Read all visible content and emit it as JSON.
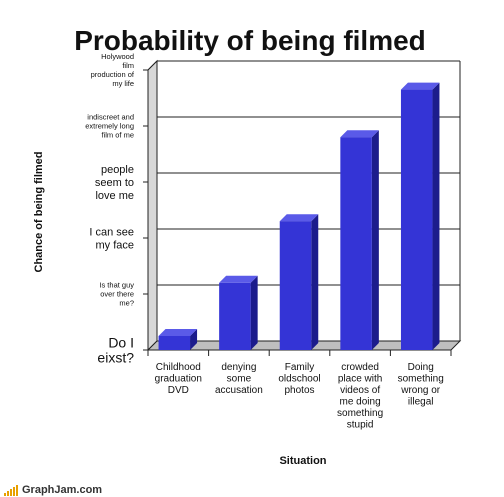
{
  "chart_data": {
    "type": "bar",
    "title": "Probability of being filmed",
    "xlabel": "Situation",
    "ylabel": "Chance of being filmed",
    "categories": [
      "Childhood graduation DVD",
      "denying some accusation",
      "Family oldschool photos",
      "crowded place with videos of me doing something stupid",
      "Doing something wrong or illegal"
    ],
    "category_lines": [
      [
        "Childhood",
        "graduation",
        "DVD"
      ],
      [
        "denying",
        "some",
        "accusation"
      ],
      [
        "Family",
        "oldschool",
        "photos"
      ],
      [
        "crowded",
        "place with",
        "videos of",
        "me doing",
        "something",
        "stupid"
      ],
      [
        "Doing",
        "something",
        "wrong or",
        "illegal"
      ]
    ],
    "values": [
      0.25,
      1.2,
      2.3,
      3.8,
      4.65
    ],
    "ylim": [
      0,
      5
    ],
    "y_ticks": [
      {
        "value": 0,
        "lines": [
          "Do I",
          "eixst?"
        ]
      },
      {
        "value": 1,
        "lines": [
          "Is that guy",
          "over there",
          "me?"
        ]
      },
      {
        "value": 2,
        "lines": [
          "I can see",
          "my face"
        ]
      },
      {
        "value": 3,
        "lines": [
          "people",
          "seem to",
          "love me"
        ]
      },
      {
        "value": 4,
        "lines": [
          "indiscreet and",
          "extremely long",
          "film of me"
        ]
      },
      {
        "value": 5,
        "lines": [
          "Holywood",
          "film",
          "production of",
          "my life"
        ]
      }
    ],
    "grid": true,
    "legend": "none",
    "bar_color": "#3434d6",
    "bar_side_color": "#1c1c8c",
    "bar_top_color": "#5a5ae8"
  },
  "footer": {
    "brand": "GraphJam.com",
    "accent_color": "#e8a000"
  }
}
